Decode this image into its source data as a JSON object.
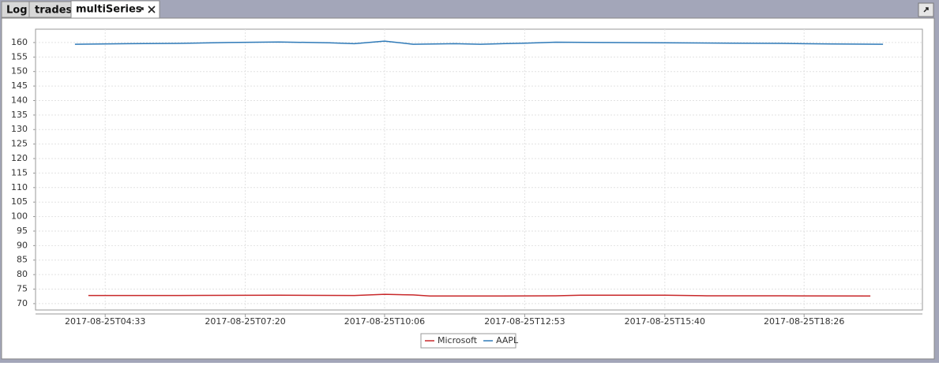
{
  "tabs": [
    "Log",
    "trades",
    "multiSeries"
  ],
  "chart_data": {
    "type": "line",
    "xlim": [
      "2017-08-25T03:10",
      "2017-08-25T20:47"
    ],
    "xticks": [
      "2017-08-25T04:33",
      "2017-08-25T07:20",
      "2017-08-25T10:06",
      "2017-08-25T12:53",
      "2017-08-25T15:40",
      "2017-08-25T18:26"
    ],
    "ylim": [
      67.8,
      164.6
    ],
    "yticks": [
      70,
      75,
      80,
      85,
      90,
      95,
      100,
      105,
      110,
      115,
      120,
      125,
      130,
      135,
      140,
      145,
      150,
      155,
      160
    ],
    "grid": true,
    "legend": "bottom",
    "series": [
      {
        "name": "Microsoft",
        "color": "#c8282a",
        "x": [
          "2017-08-25T04:13",
          "2017-08-25T06:00",
          "2017-08-25T08:00",
          "2017-08-25T09:30",
          "2017-08-25T10:06",
          "2017-08-25T10:40",
          "2017-08-25T11:00",
          "2017-08-25T12:00",
          "2017-08-25T13:30",
          "2017-08-25T14:00",
          "2017-08-25T15:40",
          "2017-08-25T16:30",
          "2017-08-25T18:00",
          "2017-08-25T19:45"
        ],
        "values": [
          72.8,
          72.8,
          72.9,
          72.8,
          73.2,
          73.0,
          72.6,
          72.6,
          72.7,
          72.9,
          72.9,
          72.7,
          72.7,
          72.6
        ]
      },
      {
        "name": "AAPL",
        "color": "#2f7ab8",
        "x": [
          "2017-08-25T03:57",
          "2017-08-25T05:00",
          "2017-08-25T06:00",
          "2017-08-25T07:00",
          "2017-08-25T08:00",
          "2017-08-25T09:00",
          "2017-08-25T09:30",
          "2017-08-25T10:06",
          "2017-08-25T10:40",
          "2017-08-25T11:30",
          "2017-08-25T12:00",
          "2017-08-25T12:53",
          "2017-08-25T13:30",
          "2017-08-25T14:30",
          "2017-08-25T15:40",
          "2017-08-25T17:00",
          "2017-08-25T18:00",
          "2017-08-25T19:00",
          "2017-08-25T20:00"
        ],
        "values": [
          159.4,
          159.6,
          159.7,
          160.0,
          160.2,
          159.9,
          159.6,
          160.5,
          159.4,
          159.6,
          159.4,
          159.8,
          160.1,
          160.0,
          159.9,
          159.8,
          159.7,
          159.5,
          159.4
        ]
      }
    ]
  }
}
